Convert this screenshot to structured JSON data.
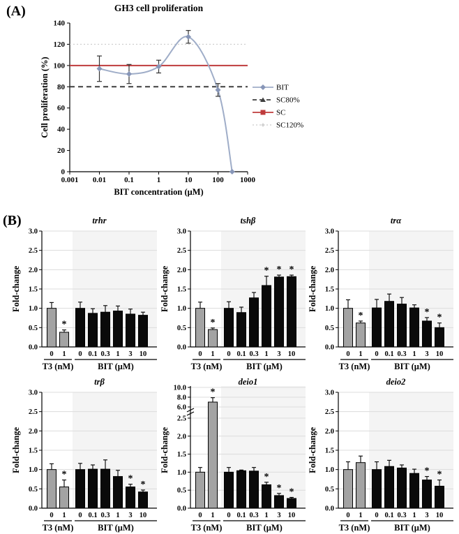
{
  "figure": {
    "panel_a_label": "(A)",
    "panel_b_label": "(B)",
    "sig_marker": "*"
  },
  "colors": {
    "bit_line": "#9fadc8",
    "bit_marker": "#8796b8",
    "sc": "#bf3b3c",
    "sc80": "#3f3f3f",
    "sc120": "#cccccc",
    "gray_bar": "#a3a3a3",
    "black_bar": "#0a0a0a",
    "shade": "#f4f4f4",
    "grid": "#dcdcdc",
    "error": "#333333"
  },
  "chart_data": [
    {
      "id": "gh3-proliferation",
      "type": "line",
      "title": "GH3 cell proliferation",
      "xlabel": "BIT concentration (μM)",
      "ylabel": "Cell proliferation (%)",
      "x_scale": "log",
      "xlim": [
        0.001,
        1000
      ],
      "x_tick_labels": [
        "0.001",
        "0.01",
        "0.1",
        "1",
        "10",
        "100",
        "1000"
      ],
      "ylim": [
        0,
        140
      ],
      "y_ticks": [
        0,
        20,
        40,
        60,
        80,
        100,
        120,
        140
      ],
      "grid": false,
      "legend_position": "right",
      "series": [
        {
          "name": "BIT",
          "type": "curve",
          "marker": "diamond",
          "style": "solid",
          "color": "#9fadc8",
          "x": [
            0.01,
            0.1,
            1,
            10,
            100,
            300
          ],
          "y": [
            97,
            92,
            99,
            127,
            77,
            0
          ],
          "yerr": [
            12,
            9,
            6,
            6,
            6,
            0
          ]
        },
        {
          "name": "SC80%",
          "type": "hline",
          "marker": "triangle",
          "style": "dashed",
          "color": "#3f3f3f",
          "y": 80
        },
        {
          "name": "SC",
          "type": "hline",
          "marker": "square",
          "style": "solid",
          "color": "#bf3b3c",
          "y": 100
        },
        {
          "name": "SC120%",
          "type": "hline",
          "marker": "tick",
          "style": "dotted",
          "color": "#cccccc",
          "y": 120
        }
      ]
    },
    {
      "id": "trhr",
      "type": "bar",
      "title": "trhr",
      "ylabel": "Fold-change",
      "ylim": [
        0,
        3.0
      ],
      "y_ticks": [
        0,
        0.5,
        1,
        1.5,
        2,
        2.5,
        3
      ],
      "groups": [
        {
          "label": "T3 (nM)",
          "tick_labels": [
            "0",
            "1"
          ]
        },
        {
          "label": "BIT (μM)",
          "tick_labels": [
            "0",
            "0.1",
            "0.3",
            "1",
            "3",
            "10"
          ]
        }
      ],
      "values": [
        1.0,
        0.38,
        1.0,
        0.87,
        0.9,
        0.93,
        0.85,
        0.82
      ],
      "errors": [
        0.15,
        0.06,
        0.16,
        0.12,
        0.17,
        0.13,
        0.13,
        0.08
      ],
      "significant": [
        false,
        true,
        false,
        false,
        false,
        false,
        false,
        false
      ]
    },
    {
      "id": "tshb",
      "type": "bar",
      "title": "tshβ",
      "ylabel": "Fold-change",
      "ylim": [
        0,
        3.0
      ],
      "y_ticks": [
        0,
        0.5,
        1,
        1.5,
        2,
        2.5,
        3
      ],
      "groups": [
        {
          "label": "T3 (nM)",
          "tick_labels": [
            "0",
            "1"
          ]
        },
        {
          "label": "BIT (μM)",
          "tick_labels": [
            "0",
            "0.1",
            "0.3",
            "1",
            "3",
            "10"
          ]
        }
      ],
      "values": [
        1.0,
        0.45,
        1.0,
        0.89,
        1.27,
        1.59,
        1.81,
        1.82
      ],
      "errors": [
        0.16,
        0.04,
        0.17,
        0.14,
        0.14,
        0.24,
        0.05,
        0.04
      ],
      "significant": [
        false,
        true,
        false,
        false,
        false,
        true,
        true,
        true
      ]
    },
    {
      "id": "tra",
      "type": "bar",
      "title": "trα",
      "ylabel": "Fold-change",
      "ylim": [
        0,
        3.0
      ],
      "y_ticks": [
        0,
        0.5,
        1,
        1.5,
        2,
        2.5,
        3
      ],
      "groups": [
        {
          "label": "T3 (nM)",
          "tick_labels": [
            "0",
            "1"
          ]
        },
        {
          "label": "BIT (μM)",
          "tick_labels": [
            "0",
            "0.1",
            "0.3",
            "1",
            "3",
            "10"
          ]
        }
      ],
      "values": [
        1.0,
        0.62,
        1.01,
        1.18,
        1.11,
        1.01,
        0.67,
        0.5
      ],
      "errors": [
        0.22,
        0.05,
        0.22,
        0.19,
        0.17,
        0.08,
        0.09,
        0.12
      ],
      "significant": [
        false,
        true,
        false,
        false,
        false,
        false,
        true,
        true
      ]
    },
    {
      "id": "trb",
      "type": "bar",
      "title": "trβ",
      "ylabel": "Fold-change",
      "ylim": [
        0,
        3.0
      ],
      "y_ticks": [
        0,
        0.5,
        1,
        1.5,
        2,
        2.5,
        3
      ],
      "groups": [
        {
          "label": "T3 (nM)",
          "tick_labels": [
            "0",
            "1"
          ]
        },
        {
          "label": "BIT (μM)",
          "tick_labels": [
            "0",
            "0.1",
            "0.3",
            "1",
            "3",
            "10"
          ]
        }
      ],
      "values": [
        1.0,
        0.55,
        1.0,
        1.01,
        1.01,
        0.82,
        0.55,
        0.42
      ],
      "errors": [
        0.15,
        0.18,
        0.16,
        0.11,
        0.24,
        0.16,
        0.07,
        0.05
      ],
      "significant": [
        false,
        true,
        false,
        false,
        false,
        false,
        true,
        true
      ]
    },
    {
      "id": "deio1",
      "type": "bar",
      "title": "deio1",
      "ylabel": "Fold-change",
      "ylim": [
        0,
        10.0
      ],
      "broken_axis": {
        "lower_max": 2.5,
        "lower_ticks": [
          0,
          0.5,
          1,
          1.5,
          2,
          2.5
        ],
        "upper_ticks": [
          6,
          8,
          10
        ]
      },
      "groups": [
        {
          "label": "T3 (nM)",
          "tick_labels": [
            "0",
            "1"
          ]
        },
        {
          "label": "BIT (μM)",
          "tick_labels": [
            "0",
            "0.1",
            "0.3",
            "1",
            "3",
            "10"
          ]
        }
      ],
      "values": [
        1.0,
        7.0,
        1.0,
        1.04,
        1.03,
        0.65,
        0.35,
        0.27
      ],
      "errors": [
        0.13,
        0.9,
        0.13,
        0.02,
        0.1,
        0.07,
        0.06,
        0.03
      ],
      "significant": [
        false,
        true,
        false,
        false,
        false,
        true,
        true,
        true
      ]
    },
    {
      "id": "deio2",
      "type": "bar",
      "title": "deio2",
      "ylabel": "Fold-change",
      "ylim": [
        0,
        3.0
      ],
      "y_ticks": [
        0,
        0.5,
        1,
        1.5,
        2,
        2.5,
        3
      ],
      "groups": [
        {
          "label": "T3 (nM)",
          "tick_labels": [
            "0",
            "1"
          ]
        },
        {
          "label": "BIT (μM)",
          "tick_labels": [
            "0",
            "0.1",
            "0.3",
            "1",
            "3",
            "10"
          ]
        }
      ],
      "values": [
        1.0,
        1.18,
        1.0,
        1.08,
        1.04,
        0.9,
        0.73,
        0.57
      ],
      "errors": [
        0.2,
        0.17,
        0.2,
        0.16,
        0.08,
        0.11,
        0.09,
        0.16
      ],
      "significant": [
        false,
        false,
        false,
        false,
        false,
        false,
        true,
        true
      ]
    }
  ]
}
